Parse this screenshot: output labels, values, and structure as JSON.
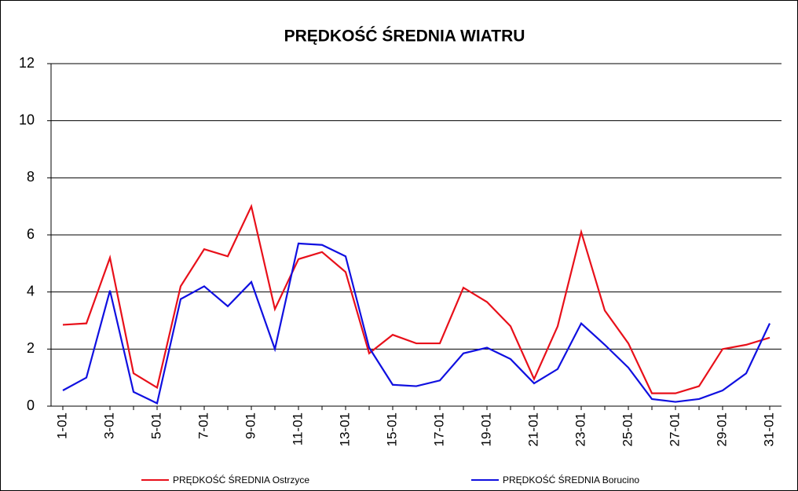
{
  "chart_data": {
    "type": "line",
    "title": "PRĘDKOŚĆ ŚREDNIA WIATRU",
    "categories": [
      "1-01",
      null,
      "3-01",
      null,
      "5-01",
      null,
      "7-01",
      null,
      "9-01",
      null,
      "11-01",
      null,
      "13-01",
      null,
      "15-01",
      null,
      "17-01",
      null,
      "19-01",
      null,
      "21-01",
      null,
      "23-01",
      null,
      "25-01",
      null,
      "27-01",
      null,
      "29-01",
      null,
      "31-01"
    ],
    "series": [
      {
        "name": "PRĘDKOŚĆ ŚREDNIA  Ostrzyce",
        "color": "#e8101a",
        "values": [
          2.85,
          2.9,
          5.2,
          1.15,
          0.65,
          4.2,
          5.5,
          5.25,
          7.0,
          3.4,
          5.15,
          5.4,
          4.7,
          1.85,
          2.5,
          2.2,
          2.2,
          4.15,
          3.65,
          2.8,
          0.95,
          2.8,
          6.1,
          3.35,
          2.2,
          0.45,
          0.45,
          0.7,
          2.0,
          2.15,
          2.4
        ]
      },
      {
        "name": "PRĘDKOŚĆ ŚREDNIA  Borucino",
        "color": "#1010e0",
        "values": [
          0.55,
          1.0,
          4.05,
          0.5,
          0.1,
          3.75,
          4.2,
          3.5,
          4.35,
          2.0,
          5.7,
          5.65,
          5.25,
          2.05,
          0.75,
          0.7,
          0.9,
          1.85,
          2.05,
          1.65,
          0.8,
          1.3,
          2.9,
          2.15,
          1.35,
          0.25,
          0.15,
          0.25,
          0.55,
          1.15,
          2.9
        ]
      }
    ],
    "ylim": [
      0,
      12
    ],
    "yticks": [
      0,
      2,
      4,
      6,
      8,
      10,
      12
    ],
    "grid": true,
    "legend": "bottom"
  }
}
